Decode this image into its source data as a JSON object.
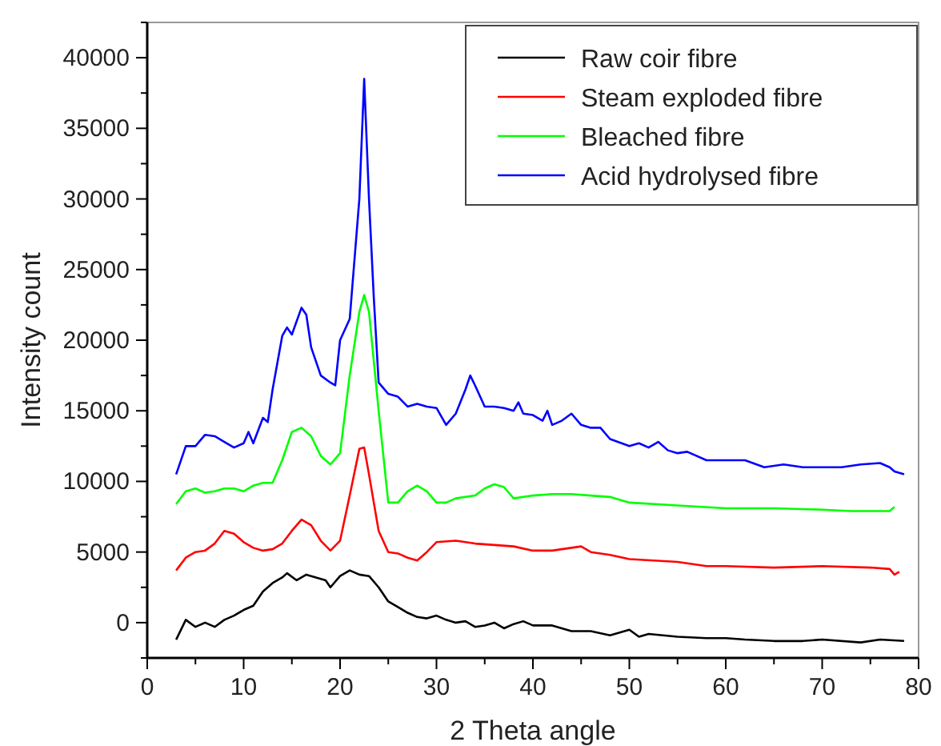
{
  "chart_data": {
    "type": "line",
    "xlabel": "2 Theta angle",
    "ylabel": "Intensity count",
    "xlim": [
      0,
      80
    ],
    "ylim": [
      -2500,
      42500
    ],
    "xticks": [
      0,
      {
        "value": 5,
        "label": null
      },
      10,
      {
        "value": 15,
        "label": null
      },
      20,
      {
        "value": 25,
        "label": null
      },
      30,
      {
        "value": 35,
        "label": null
      },
      40,
      {
        "value": 45,
        "label": null
      },
      50,
      {
        "value": 55,
        "label": null
      },
      60,
      {
        "value": 65,
        "label": null
      },
      70,
      {
        "value": 75,
        "label": null
      },
      80
    ],
    "yticks": [
      {
        "value": -2500,
        "label": null
      },
      0,
      {
        "value": 2500,
        "label": null
      },
      5000,
      {
        "value": 7500,
        "label": null
      },
      10000,
      {
        "value": 12500,
        "label": null
      },
      15000,
      {
        "value": 17500,
        "label": null
      },
      20000,
      {
        "value": 22500,
        "label": null
      },
      25000,
      {
        "value": 27500,
        "label": null
      },
      30000,
      {
        "value": 32500,
        "label": null
      },
      35000,
      {
        "value": 37500,
        "label": null
      },
      40000,
      {
        "value": 42500,
        "label": null
      }
    ],
    "grid": false,
    "legend": "top right",
    "line_style": "solid",
    "series": [
      {
        "name": "Raw coir fibre",
        "color": "#000000",
        "x": [
          3,
          4,
          5,
          6,
          7,
          8,
          9,
          10,
          11,
          12,
          13,
          14,
          14.5,
          15.5,
          16.5,
          17.5,
          18.5,
          19,
          20,
          21,
          22,
          23,
          24,
          25,
          26,
          27,
          28,
          29,
          30,
          31,
          32,
          33,
          34,
          35,
          36,
          37,
          38,
          39,
          40,
          42,
          44,
          46,
          48,
          50,
          51,
          52,
          55,
          58,
          60,
          62,
          65,
          68,
          70,
          74,
          76,
          78.5
        ],
        "values": [
          -1200,
          200,
          -300,
          0,
          -300,
          200,
          500,
          900,
          1200,
          2200,
          2800,
          3200,
          3500,
          3000,
          3400,
          3200,
          3000,
          2500,
          3300,
          3700,
          3400,
          3300,
          2500,
          1500,
          1100,
          700,
          400,
          300,
          500,
          200,
          0,
          100,
          -300,
          -200,
          0,
          -400,
          -100,
          100,
          -200,
          -200,
          -600,
          -600,
          -900,
          -500,
          -1000,
          -800,
          -1000,
          -1100,
          -1100,
          -1200,
          -1300,
          -1300,
          -1200,
          -1400,
          -1200,
          -1300
        ]
      },
      {
        "name": "Steam exploded fibre",
        "color": "#ff0000",
        "x": [
          3,
          4,
          5,
          6,
          7,
          8,
          9,
          10,
          11,
          12,
          13,
          14,
          15,
          16,
          17,
          18,
          19,
          20,
          21,
          22,
          22.5,
          23,
          24,
          25,
          26,
          27,
          28,
          29,
          30,
          32,
          34,
          36,
          38,
          40,
          42,
          44,
          45,
          46,
          48,
          50,
          55,
          58,
          60,
          65,
          70,
          75,
          77,
          77.5,
          78
        ],
        "values": [
          3700,
          4600,
          5000,
          5100,
          5600,
          6500,
          6300,
          5700,
          5300,
          5100,
          5200,
          5600,
          6500,
          7300,
          6900,
          5800,
          5100,
          5800,
          9000,
          12300,
          12400,
          10500,
          6500,
          5000,
          4900,
          4600,
          4400,
          5000,
          5700,
          5800,
          5600,
          5500,
          5400,
          5100,
          5100,
          5300,
          5400,
          5000,
          4800,
          4500,
          4300,
          4000,
          4000,
          3900,
          4000,
          3900,
          3800,
          3400,
          3600
        ]
      },
      {
        "name": "Bleached fibre",
        "color": "#00ff00",
        "x": [
          3,
          4,
          5,
          6,
          7,
          8,
          9,
          10,
          11,
          12,
          13,
          14,
          15,
          16,
          17,
          18,
          19,
          20,
          21,
          22,
          22.5,
          23,
          24,
          25,
          26,
          27,
          28,
          29,
          30,
          31,
          32,
          34,
          35,
          36,
          37,
          38,
          40,
          42,
          44,
          46,
          48,
          50,
          55,
          60,
          65,
          70,
          73,
          77,
          77.5
        ],
        "values": [
          8400,
          9300,
          9500,
          9200,
          9300,
          9500,
          9500,
          9300,
          9700,
          9900,
          9900,
          11500,
          13500,
          13800,
          13200,
          11800,
          11200,
          12000,
          17500,
          22000,
          23200,
          22000,
          15000,
          8500,
          8500,
          9300,
          9700,
          9300,
          8500,
          8500,
          8800,
          9000,
          9500,
          9800,
          9600,
          8800,
          9000,
          9100,
          9100,
          9000,
          8900,
          8500,
          8300,
          8100,
          8100,
          8000,
          7900,
          7900,
          8200
        ]
      },
      {
        "name": "Acid hydrolysed fibre",
        "color": "#0000ff",
        "x": [
          3,
          4,
          5,
          6,
          7,
          8,
          9,
          10,
          10.5,
          11,
          12,
          12.5,
          13,
          14,
          14.5,
          15,
          16,
          16.5,
          17,
          18,
          19,
          19.5,
          20,
          21,
          22,
          22.5,
          23,
          23.5,
          24,
          25,
          26,
          27,
          28,
          29,
          30,
          31,
          32,
          33,
          33.5,
          34,
          35,
          36,
          37,
          38,
          38.5,
          39,
          40,
          41,
          41.5,
          42,
          43,
          44,
          45,
          46,
          47,
          48,
          50,
          51,
          52,
          53,
          54,
          55,
          56,
          58,
          60,
          62,
          64,
          66,
          68,
          70,
          72,
          74,
          76,
          77,
          77.5,
          78.5
        ],
        "values": [
          10500,
          12500,
          12500,
          13300,
          13200,
          12800,
          12400,
          12700,
          13500,
          12700,
          14500,
          14200,
          16500,
          20300,
          20900,
          20400,
          22300,
          21800,
          19500,
          17500,
          17000,
          16800,
          20000,
          21500,
          30000,
          38500,
          30000,
          23000,
          17000,
          16200,
          16000,
          15300,
          15500,
          15300,
          15200,
          14000,
          14800,
          16500,
          17500,
          16800,
          15300,
          15300,
          15200,
          15000,
          15600,
          14800,
          14700,
          14300,
          15000,
          14000,
          14300,
          14800,
          14000,
          13800,
          13800,
          13000,
          12500,
          12700,
          12400,
          12800,
          12200,
          12000,
          12100,
          11500,
          11500,
          11500,
          11000,
          11200,
          11000,
          11000,
          11000,
          11200,
          11300,
          11000,
          10700,
          10500
        ]
      }
    ]
  }
}
